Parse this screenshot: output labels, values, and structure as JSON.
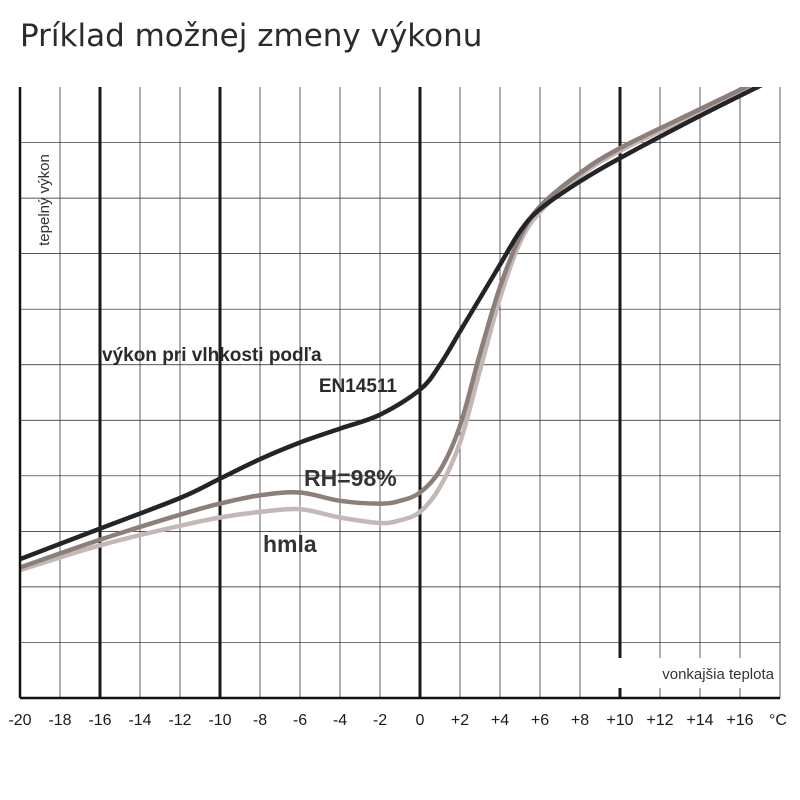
{
  "chart_data": {
    "type": "line",
    "title": "Príklad možnej zmeny výkonu",
    "xlabel": "vonkajšia teplota",
    "ylabel": "tepelný výkon",
    "xlim": [
      -20,
      18
    ],
    "ylim": [
      0,
      11
    ],
    "grid": true,
    "x_ticks": [
      "-20",
      "-18",
      "-16",
      "-14",
      "-12",
      "-10",
      "-8",
      "-6",
      "-4",
      "-2",
      "0",
      "+2",
      "+4",
      "+6",
      "+8",
      "+10",
      "+12",
      "+14",
      "+16"
    ],
    "x_unit": "°C",
    "major_gridlines_x": [
      -16,
      -10,
      0,
      10
    ],
    "series": [
      {
        "name": "EN14511",
        "color": "#222428",
        "x": [
          -20,
          -16,
          -12,
          -10,
          -8,
          -6,
          -4,
          -2,
          0,
          1,
          2,
          3,
          4,
          5,
          6,
          8,
          10,
          14,
          18
        ],
        "y": [
          2.5,
          3.05,
          3.6,
          3.95,
          4.3,
          4.6,
          4.85,
          5.1,
          5.55,
          6.0,
          6.6,
          7.2,
          7.8,
          8.4,
          8.8,
          9.3,
          9.72,
          10.48,
          11.2
        ]
      },
      {
        "name": "RH=98%",
        "color": "#8c7e79",
        "x": [
          -20,
          -16,
          -12,
          -10,
          -8,
          -6,
          -4,
          -2,
          -1,
          0,
          1,
          2,
          3,
          4,
          5,
          6,
          8,
          10,
          14,
          18
        ],
        "y": [
          2.35,
          2.85,
          3.3,
          3.5,
          3.65,
          3.7,
          3.55,
          3.5,
          3.55,
          3.7,
          4.1,
          4.9,
          6.2,
          7.4,
          8.3,
          8.85,
          9.45,
          9.9,
          10.6,
          11.3
        ]
      },
      {
        "name": "hmla",
        "color": "#c4b8b6",
        "x": [
          -20,
          -16,
          -12,
          -10,
          -8,
          -6,
          -4,
          -2,
          -1,
          0,
          1,
          2,
          3,
          4,
          5,
          6,
          8,
          10,
          14,
          18
        ],
        "y": [
          2.3,
          2.75,
          3.1,
          3.25,
          3.35,
          3.4,
          3.25,
          3.15,
          3.2,
          3.35,
          3.8,
          4.6,
          5.9,
          7.2,
          8.2,
          8.75,
          9.4,
          9.85,
          10.55,
          11.25
        ]
      }
    ],
    "annotations": {
      "line1": "výkon pri  vlhkosti podľa",
      "line2": "EN14511",
      "rh": "RH=98%",
      "fog": "hmla"
    }
  }
}
